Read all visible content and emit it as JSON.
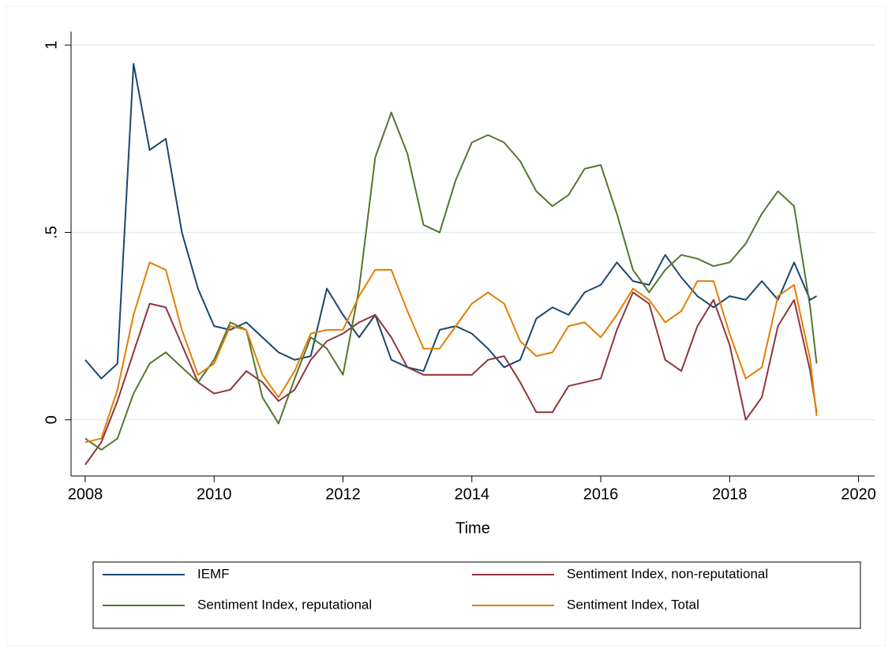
{
  "chart_data": {
    "type": "line",
    "x_label": "Time",
    "x": [
      2008,
      2008.25,
      2008.5,
      2008.75,
      2009,
      2009.25,
      2009.5,
      2009.75,
      2010,
      2010.25,
      2010.5,
      2010.75,
      2011,
      2011.25,
      2011.5,
      2011.75,
      2012,
      2012.25,
      2012.5,
      2012.75,
      2013,
      2013.25,
      2013.5,
      2013.75,
      2014,
      2014.25,
      2014.5,
      2014.75,
      2015,
      2015.25,
      2015.5,
      2015.75,
      2016,
      2016.25,
      2016.5,
      2016.75,
      2017,
      2017.25,
      2017.5,
      2017.75,
      2018,
      2018.25,
      2018.5,
      2018.75,
      2019,
      2019.25,
      2019.35
    ],
    "series": [
      {
        "name": "IEMF",
        "color": "#1a476f",
        "values": [
          0.16,
          0.11,
          0.15,
          0.95,
          0.72,
          0.75,
          0.5,
          0.35,
          0.25,
          0.24,
          0.26,
          0.22,
          0.18,
          0.16,
          0.17,
          0.35,
          0.28,
          0.22,
          0.28,
          0.16,
          0.14,
          0.13,
          0.24,
          0.25,
          0.23,
          0.19,
          0.14,
          0.16,
          0.27,
          0.3,
          0.28,
          0.34,
          0.36,
          0.42,
          0.37,
          0.36,
          0.44,
          0.38,
          0.33,
          0.3,
          0.33,
          0.32,
          0.37,
          0.32,
          0.42,
          0.32,
          0.33
        ]
      },
      {
        "name": "Sentiment Index, non-reputational",
        "color": "#90353b",
        "values": [
          -0.12,
          -0.06,
          0.05,
          0.18,
          0.31,
          0.3,
          0.2,
          0.1,
          0.07,
          0.08,
          0.13,
          0.1,
          0.05,
          0.08,
          0.16,
          0.21,
          0.23,
          0.26,
          0.28,
          0.22,
          0.14,
          0.12,
          0.12,
          0.12,
          0.12,
          0.16,
          0.17,
          0.1,
          0.02,
          0.02,
          0.09,
          0.1,
          0.11,
          0.24,
          0.34,
          0.31,
          0.16,
          0.13,
          0.25,
          0.32,
          0.2,
          0.0,
          0.06,
          0.25,
          0.32,
          0.13,
          0.02
        ]
      },
      {
        "name": "Sentiment Index, reputational",
        "color": "#55752f",
        "values": [
          -0.05,
          -0.08,
          -0.05,
          0.07,
          0.15,
          0.18,
          0.14,
          0.1,
          0.16,
          0.26,
          0.24,
          0.06,
          -0.01,
          0.11,
          0.22,
          0.19,
          0.12,
          0.35,
          0.7,
          0.82,
          0.71,
          0.52,
          0.5,
          0.64,
          0.74,
          0.76,
          0.74,
          0.69,
          0.61,
          0.57,
          0.6,
          0.67,
          0.68,
          0.55,
          0.4,
          0.34,
          0.4,
          0.44,
          0.43,
          0.41,
          0.42,
          0.47,
          0.55,
          0.61,
          0.57,
          0.3,
          0.15
        ]
      },
      {
        "name": "Sentiment Index, Total",
        "color": "#e37e00",
        "values": [
          -0.06,
          -0.05,
          0.08,
          0.28,
          0.42,
          0.4,
          0.24,
          0.12,
          0.15,
          0.25,
          0.24,
          0.12,
          0.06,
          0.13,
          0.23,
          0.24,
          0.24,
          0.33,
          0.4,
          0.4,
          0.29,
          0.19,
          0.19,
          0.25,
          0.31,
          0.34,
          0.31,
          0.21,
          0.17,
          0.18,
          0.25,
          0.26,
          0.22,
          0.28,
          0.35,
          0.32,
          0.26,
          0.29,
          0.37,
          0.37,
          0.23,
          0.11,
          0.14,
          0.33,
          0.36,
          0.16,
          0.01
        ]
      }
    ],
    "xlim": [
      2007.78,
      2020.25
    ],
    "xticks": [
      2008,
      2010,
      2012,
      2014,
      2016,
      2018,
      2020
    ],
    "ylim": [
      -0.15,
      1.036
    ],
    "yticks": [
      0,
      {
        "value": 0.5,
        "label": ".5"
      },
      1
    ],
    "grid": true,
    "legend_columns": 2
  }
}
